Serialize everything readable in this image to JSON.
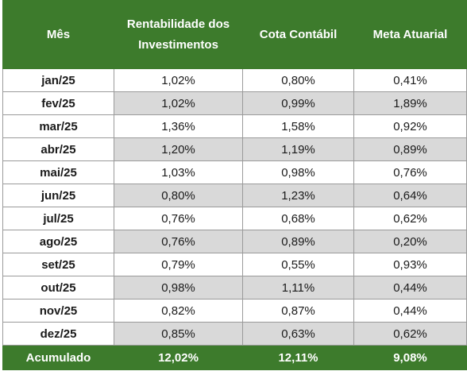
{
  "table": {
    "headers": {
      "month": "Mês",
      "investments_line1": "Rentabilidade dos",
      "investments_line2": "Investimentos",
      "cota": "Cota Contábil",
      "meta": "Meta Atuarial"
    },
    "rows": [
      {
        "month": "jan/25",
        "rent": "1,02%",
        "cota": "0,80%",
        "meta": "0,41%"
      },
      {
        "month": "fev/25",
        "rent": "1,02%",
        "cota": "0,99%",
        "meta": "1,89%"
      },
      {
        "month": "mar/25",
        "rent": "1,36%",
        "cota": "1,58%",
        "meta": "0,92%"
      },
      {
        "month": "abr/25",
        "rent": "1,20%",
        "cota": "1,19%",
        "meta": "0,89%"
      },
      {
        "month": "mai/25",
        "rent": "1,03%",
        "cota": "0,98%",
        "meta": "0,76%"
      },
      {
        "month": "jun/25",
        "rent": "0,80%",
        "cota": "1,23%",
        "meta": "0,64%"
      },
      {
        "month": "jul/25",
        "rent": "0,76%",
        "cota": "0,68%",
        "meta": "0,62%"
      },
      {
        "month": "ago/25",
        "rent": "0,76%",
        "cota": "0,89%",
        "meta": "0,20%"
      },
      {
        "month": "set/25",
        "rent": "0,79%",
        "cota": "0,55%",
        "meta": "0,93%"
      },
      {
        "month": "out/25",
        "rent": "0,98%",
        "cota": "1,11%",
        "meta": "0,44%"
      },
      {
        "month": "nov/25",
        "rent": "0,82%",
        "cota": "0,87%",
        "meta": "0,44%"
      },
      {
        "month": "dez/25",
        "rent": "0,85%",
        "cota": "0,63%",
        "meta": "0,62%"
      }
    ],
    "footer": {
      "label": "Acumulado",
      "rent": "12,02%",
      "cota": "12,11%",
      "meta": "9,08%"
    },
    "colors": {
      "header_bg": "#3d7b2c",
      "header_text": "#ffffff",
      "shaded_row": "#d9d9d9",
      "border": "#9a9a9a"
    }
  }
}
